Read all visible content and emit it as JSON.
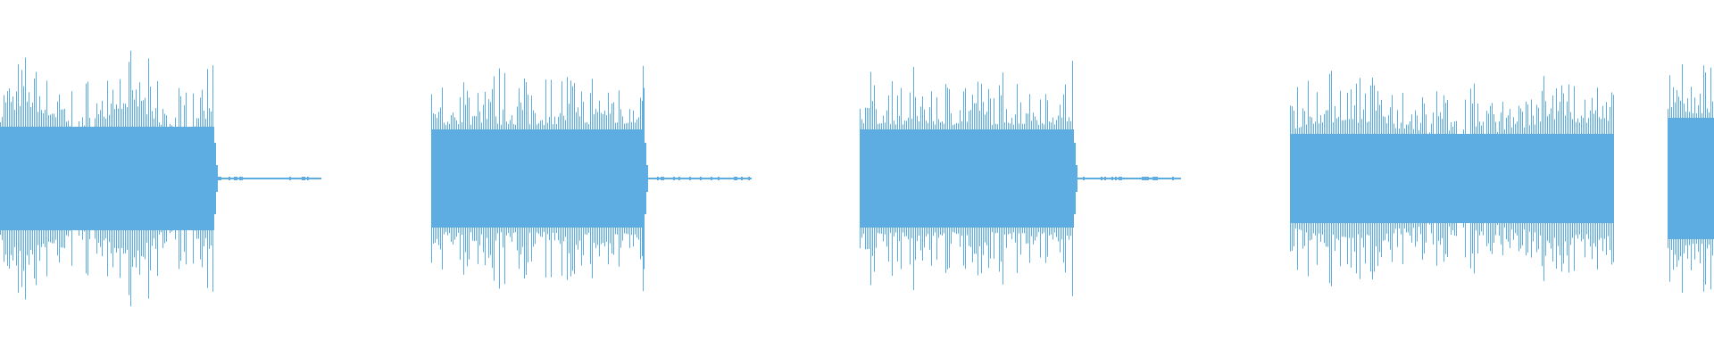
{
  "waveform": {
    "color": "#5dade2",
    "background": "#ffffff",
    "bursts": 5
  }
}
